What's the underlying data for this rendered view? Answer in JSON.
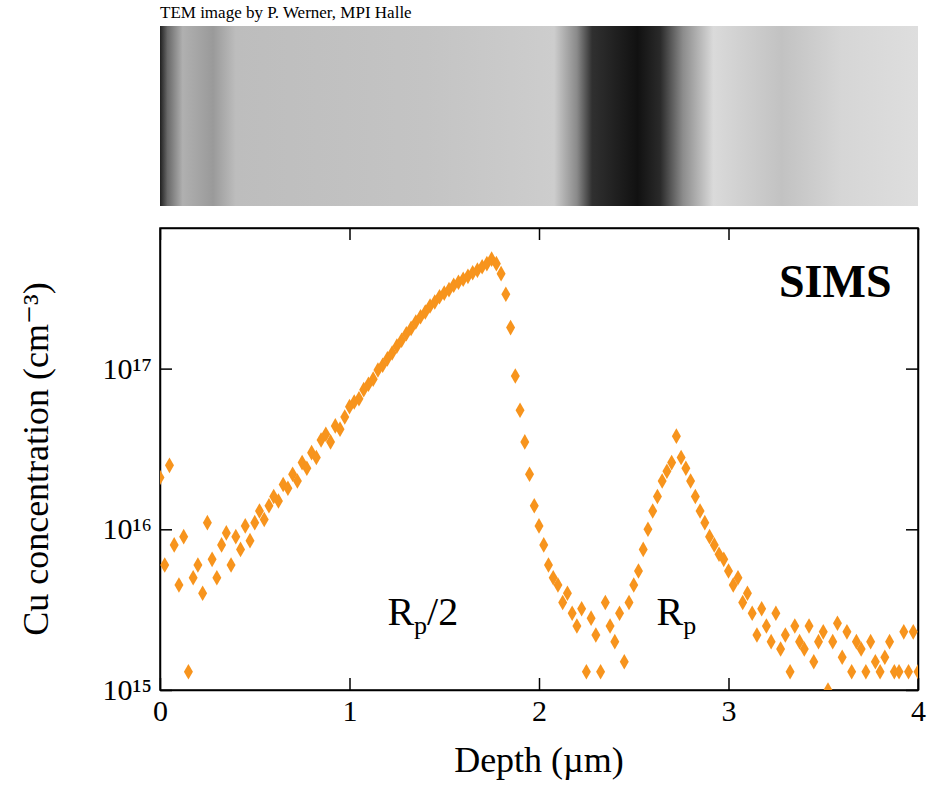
{
  "chart_data": {
    "type": "scatter",
    "caption": "TEM image by P. Werner, MPI Halle",
    "x_label": "Depth (µm)",
    "y_label": "Cu concentration (cm⁻³)",
    "annotations": [
      "SIMS",
      "Rp/2",
      "Rp"
    ],
    "log": "y",
    "color": "#f7941d",
    "marker": "diamond",
    "xlim": [
      0,
      4
    ],
    "ylim": [
      1000000000000000.0,
      7.5e+17
    ],
    "xticks": [
      0,
      1,
      2,
      3,
      4
    ],
    "yticks": [
      {
        "value": 1000000000000000.0,
        "label": "10¹⁵"
      },
      {
        "value": 1e+16,
        "label": "10¹⁶"
      },
      {
        "value": 1e+17,
        "label": "10¹⁷"
      }
    ],
    "x": [
      0.0,
      0.025,
      0.05,
      0.075,
      0.1,
      0.125,
      0.15,
      0.175,
      0.2,
      0.225,
      0.25,
      0.275,
      0.3,
      0.325,
      0.35,
      0.375,
      0.4,
      0.425,
      0.45,
      0.475,
      0.5,
      0.525,
      0.55,
      0.575,
      0.6,
      0.625,
      0.65,
      0.675,
      0.7,
      0.725,
      0.75,
      0.775,
      0.8,
      0.825,
      0.85,
      0.875,
      0.9,
      0.925,
      0.95,
      0.975,
      1.0,
      1.025,
      1.05,
      1.075,
      1.1,
      1.125,
      1.15,
      1.175,
      1.2,
      1.225,
      1.25,
      1.275,
      1.3,
      1.325,
      1.35,
      1.375,
      1.4,
      1.425,
      1.45,
      1.475,
      1.5,
      1.525,
      1.55,
      1.575,
      1.6,
      1.625,
      1.65,
      1.675,
      1.7,
      1.725,
      1.75,
      1.775,
      1.8,
      1.825,
      1.85,
      1.875,
      1.9,
      1.925,
      1.95,
      1.975,
      2.0,
      2.025,
      2.05,
      2.075,
      2.1,
      2.125,
      2.15,
      2.175,
      2.2,
      2.225,
      2.25,
      2.275,
      2.3,
      2.325,
      2.35,
      2.375,
      2.4,
      2.425,
      2.45,
      2.475,
      2.5,
      2.525,
      2.55,
      2.575,
      2.6,
      2.625,
      2.65,
      2.675,
      2.7,
      2.725,
      2.75,
      2.775,
      2.8,
      2.825,
      2.85,
      2.875,
      2.9,
      2.925,
      2.95,
      2.975,
      3.0,
      3.025,
      3.05,
      3.075,
      3.1,
      3.125,
      3.15,
      3.175,
      3.2,
      3.225,
      3.25,
      3.275,
      3.3,
      3.325,
      3.35,
      3.375,
      3.4,
      3.425,
      3.45,
      3.475,
      3.5,
      3.525,
      3.55,
      3.575,
      3.6,
      3.625,
      3.65,
      3.675,
      3.7,
      3.725,
      3.75,
      3.775,
      3.8,
      3.825,
      3.85,
      3.875,
      3.9,
      3.925,
      3.95,
      3.975,
      4.0
    ],
    "values": [
      2.1e+16,
      6000000000000000.0,
      2.5e+16,
      8000000000000000.0,
      4500000000000000.0,
      9000000000000000.0,
      1300000000000000.0,
      5000000000000000.0,
      6000000000000000.0,
      4000000000000000.0,
      1.1e+16,
      6500000000000000.0,
      5000000000000000.0,
      8000000000000000.0,
      9500000000000000.0,
      6000000000000000.0,
      9000000000000000.0,
      7500000000000000.0,
      1.05e+16,
      8500000000000000.0,
      1.1e+16,
      1.3e+16,
      1.15e+16,
      1.4e+16,
      1.6e+16,
      1.5e+16,
      1.9e+16,
      1.8e+16,
      2.2e+16,
      2e+16,
      2.6e+16,
      2.4e+16,
      3e+16,
      2.8e+16,
      3.6e+16,
      3.9e+16,
      3.5e+16,
      4.4e+16,
      4.2e+16,
      5e+16,
      5.8e+16,
      6.2e+16,
      6.5e+16,
      7.4e+16,
      8e+16,
      8.6e+16,
      9.8e+16,
      1.05e+17,
      1.15e+17,
      1.25e+17,
      1.38e+17,
      1.5e+17,
      1.65e+17,
      1.78e+17,
      1.95e+17,
      2.1e+17,
      2.25e+17,
      2.45e+17,
      2.6e+17,
      2.8e+17,
      2.95e+17,
      3.1e+17,
      3.3e+17,
      3.45e+17,
      3.6e+17,
      3.75e+17,
      3.95e+17,
      4.1e+17,
      4.3e+17,
      4.5e+17,
      4.8e+17,
      4.5e+17,
      3.9e+17,
      2.9e+17,
      1.8e+17,
      9e+16,
      5.5e+16,
      3.5e+16,
      2.2e+16,
      1.4e+16,
      1.05e+16,
      8000000000000000.0,
      6000000000000000.0,
      5000000000000000.0,
      4500000000000000.0,
      3500000000000000.0,
      4000000000000000.0,
      3000000000000000.0,
      2500000000000000.0,
      3200000000000000.0,
      1300000000000000.0,
      2800000000000000.0,
      2200000000000000.0,
      1300000000000000.0,
      3500000000000000.0,
      2500000000000000.0,
      2000000000000000.0,
      3000000000000000.0,
      1500000000000000.0,
      3500000000000000.0,
      4500000000000000.0,
      5500000000000000.0,
      7500000000000000.0,
      1e+16,
      1.3e+16,
      1.6e+16,
      2e+16,
      2.3e+16,
      2.6e+16,
      3.8e+16,
      2.8e+16,
      2.4e+16,
      2e+16,
      1.6e+16,
      1.3e+16,
      1.1e+16,
      9000000000000000.0,
      8000000000000000.0,
      7000000000000000.0,
      6500000000000000.0,
      5500000000000000.0,
      4500000000000000.0,
      5000000000000000.0,
      3500000000000000.0,
      4000000000000000.0,
      3000000000000000.0,
      2200000000000000.0,
      3200000000000000.0,
      2500000000000000.0,
      2000000000000000.0,
      3000000000000000.0,
      1800000000000000.0,
      2200000000000000.0,
      1300000000000000.0,
      2500000000000000.0,
      2000000000000000.0,
      1800000000000000.0,
      2500000000000000.0,
      1500000000000000.0,
      2000000000000000.0,
      2300000000000000.0,
      1000000000000000.0,
      2000000000000000.0,
      2600000000000000.0,
      1600000000000000.0,
      2300000000000000.0,
      1300000000000000.0,
      2000000000000000.0,
      1800000000000000.0,
      1300000000000000.0,
      2000000000000000.0,
      1500000000000000.0,
      1300000000000000.0,
      1600000000000000.0,
      2000000000000000.0,
      1300000000000000.0,
      1300000000000000.0,
      2300000000000000.0,
      1300000000000000.0,
      2300000000000000.0,
      1300000000000000.0
    ]
  }
}
